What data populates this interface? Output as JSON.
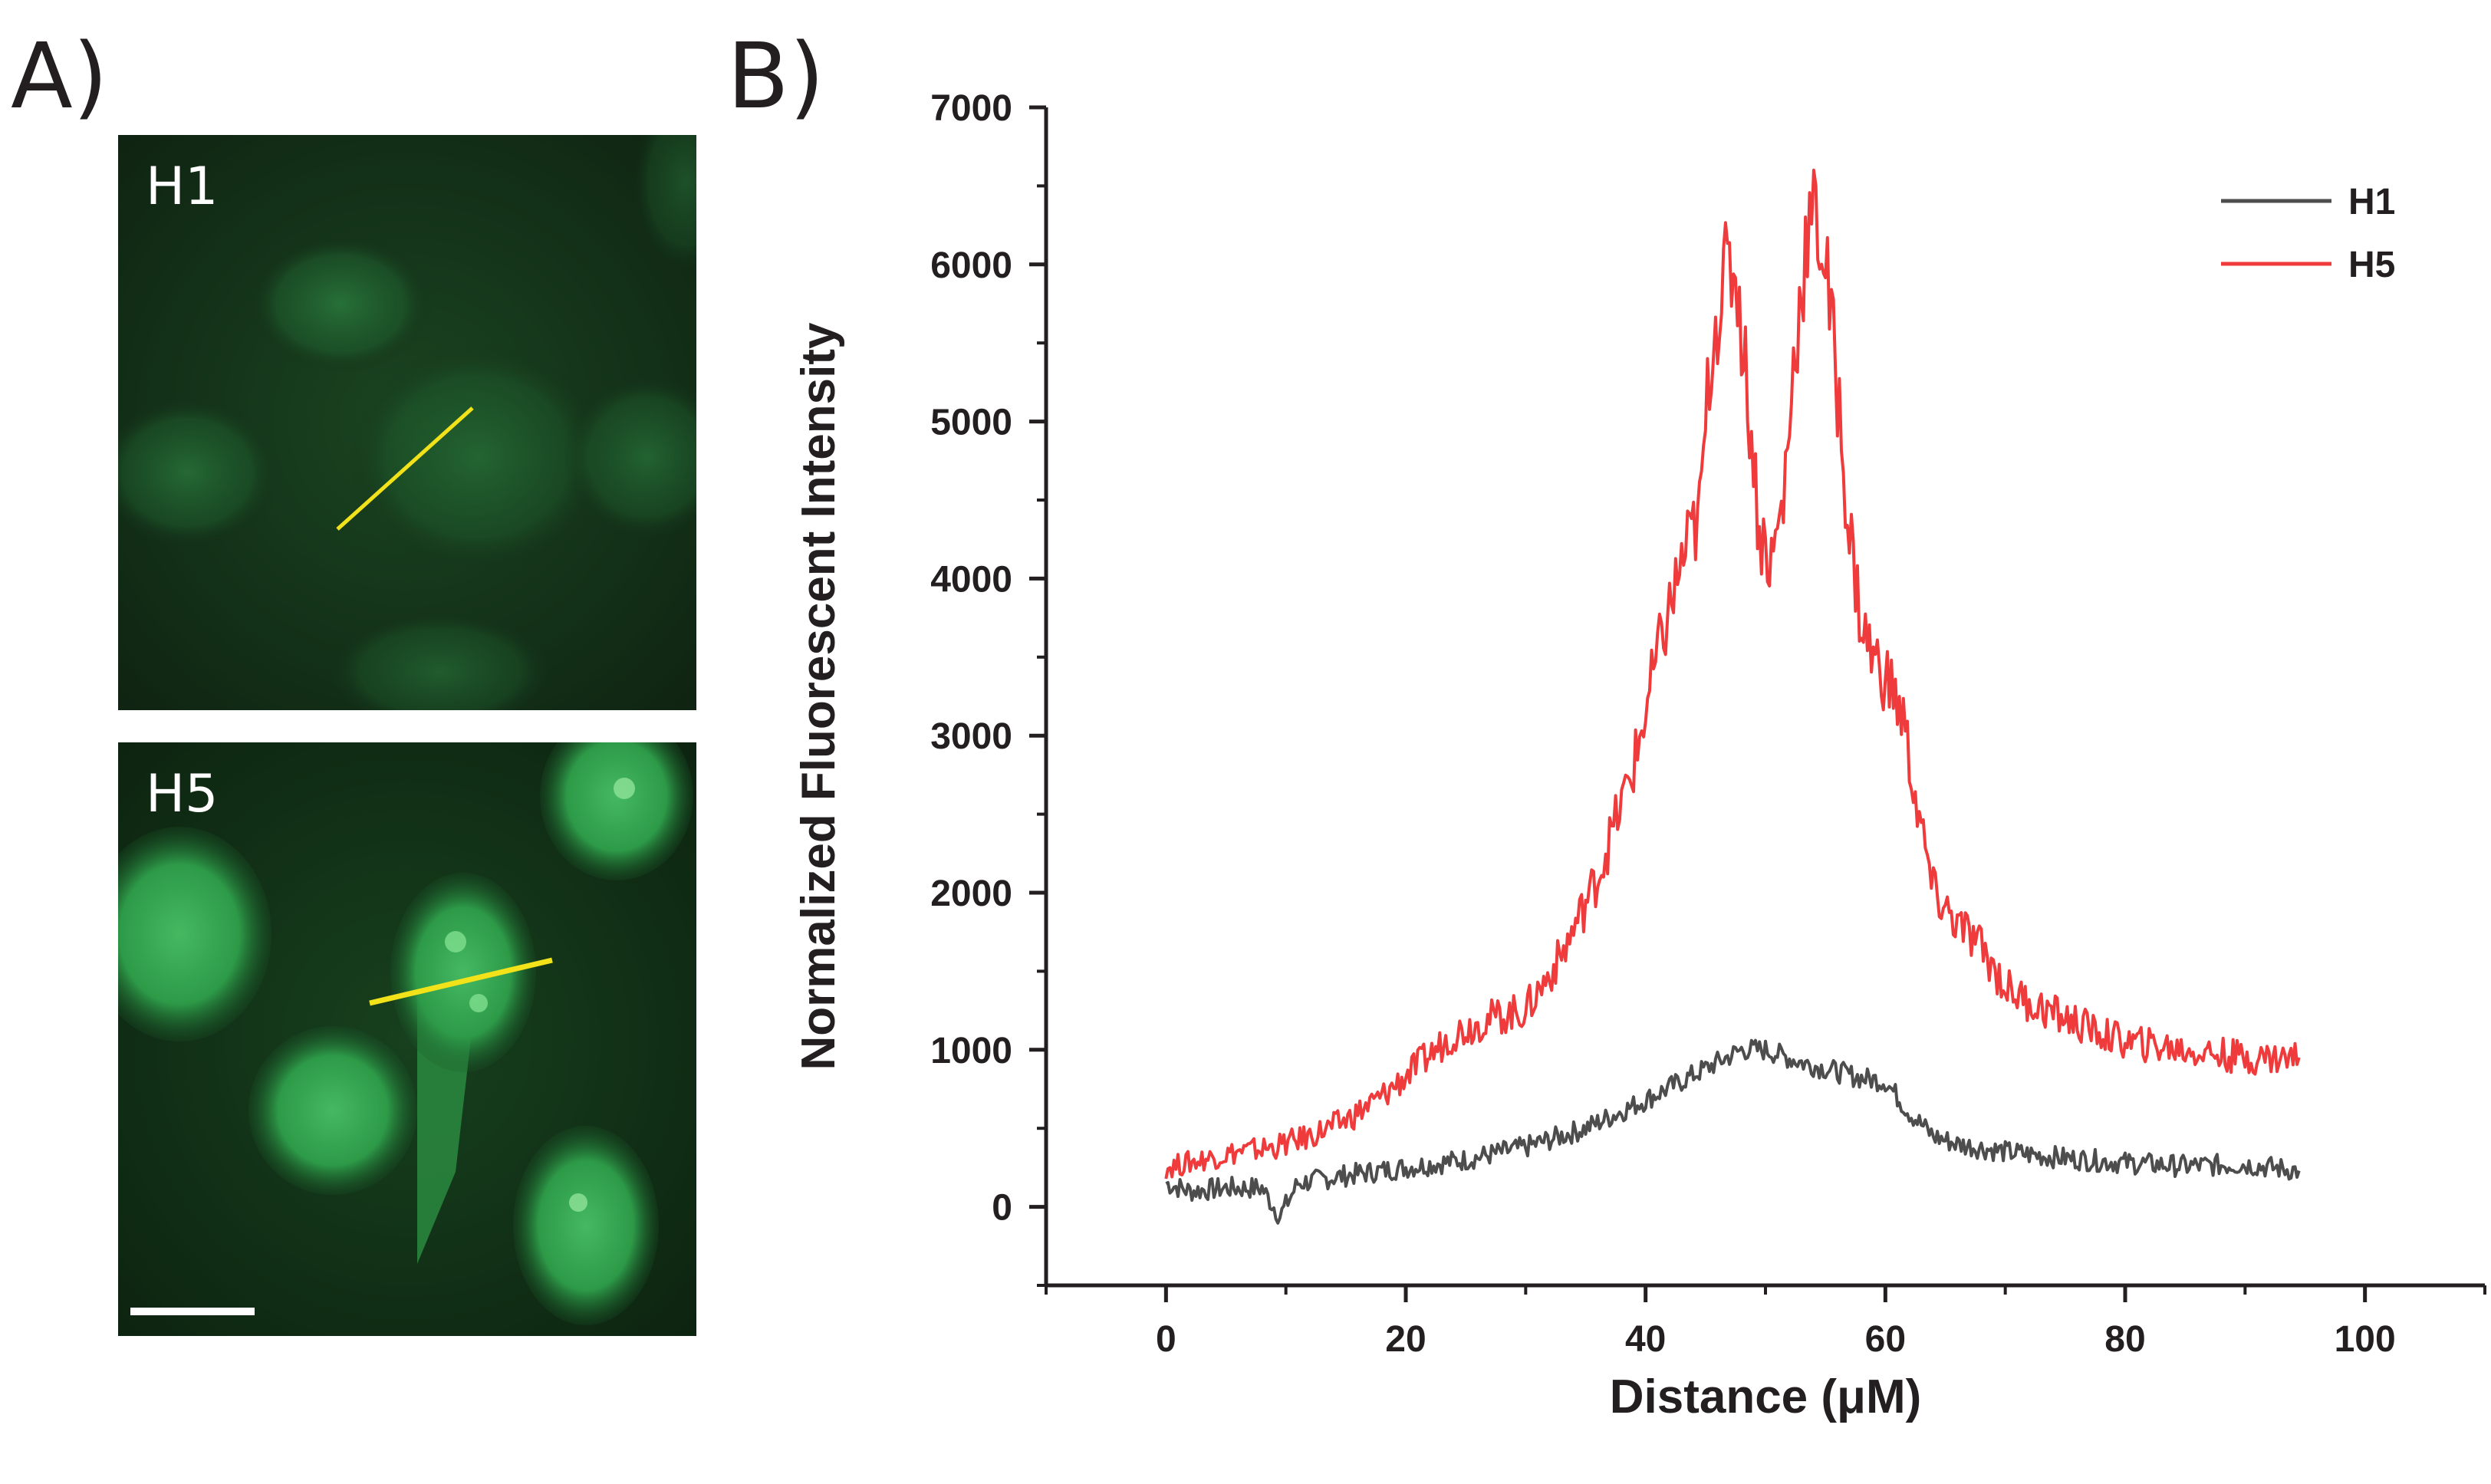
{
  "panels": {
    "a_label": "A)",
    "b_label": "B)"
  },
  "micrographs": {
    "top_label": "H1",
    "bottom_label": "H5",
    "background_color_top": "#112714",
    "background_color_bottom": "#0e2812",
    "cell_color": "#1f7a36",
    "bright_cell_color": "#3fb05a",
    "line_color": "#f2e21a",
    "scale_bar_color": "#ffffff"
  },
  "chart_data": {
    "type": "line",
    "title": "",
    "xlabel": "Distance (μM)",
    "ylabel": "Normalized Fluorescent Intensity",
    "xlim": [
      -10,
      110
    ],
    "ylim": [
      -500,
      7000
    ],
    "x_ticks": [
      0,
      20,
      40,
      60,
      80,
      100
    ],
    "y_ticks": [
      0,
      1000,
      2000,
      3000,
      4000,
      5000,
      6000,
      7000
    ],
    "x_tick_labels": [
      "0",
      "20",
      "40",
      "60",
      "80",
      "100"
    ],
    "y_tick_labels": [
      "0",
      "1000",
      "2000",
      "3000",
      "4000",
      "5000",
      "6000",
      "7000"
    ],
    "legend_position": "top-right",
    "series": [
      {
        "name": "H1",
        "color": "#4d4d4d",
        "x": [
          0,
          2,
          5,
          8,
          9.5,
          11,
          15,
          20,
          25,
          30,
          35,
          40,
          43,
          46,
          48,
          50,
          53,
          56,
          58,
          60,
          62,
          64,
          66,
          70,
          75,
          80,
          85,
          90,
          94.5
        ],
        "y": [
          150,
          100,
          120,
          120,
          -60,
          150,
          200,
          250,
          300,
          380,
          500,
          680,
          800,
          920,
          1000,
          1000,
          920,
          860,
          820,
          800,
          600,
          450,
          400,
          350,
          310,
          280,
          260,
          270,
          230
        ]
      },
      {
        "name": "H5",
        "color": "#ef3b3b",
        "x": [
          0,
          3,
          6,
          9,
          12,
          15,
          18,
          21,
          24,
          27,
          30,
          33,
          36,
          39,
          41,
          43,
          44.5,
          45.5,
          46.5,
          47.5,
          48.5,
          49.5,
          50.5,
          51.5,
          52.5,
          53.5,
          54.2,
          55,
          56,
          57,
          58,
          59,
          60.5,
          61.5,
          62.5,
          64,
          66,
          68,
          70,
          72,
          75,
          78,
          80,
          85,
          90,
          94.5
        ],
        "y": [
          250,
          300,
          350,
          380,
          450,
          550,
          700,
          900,
          1100,
          1200,
          1250,
          1600,
          2100,
          2800,
          3500,
          4100,
          4400,
          5500,
          5900,
          6000,
          5200,
          4300,
          4100,
          4500,
          5500,
          6200,
          6300,
          6000,
          5200,
          4300,
          3700,
          3500,
          3300,
          3100,
          2600,
          2000,
          1800,
          1650,
          1400,
          1300,
          1200,
          1100,
          1050,
          1000,
          950,
          950
        ]
      }
    ]
  }
}
